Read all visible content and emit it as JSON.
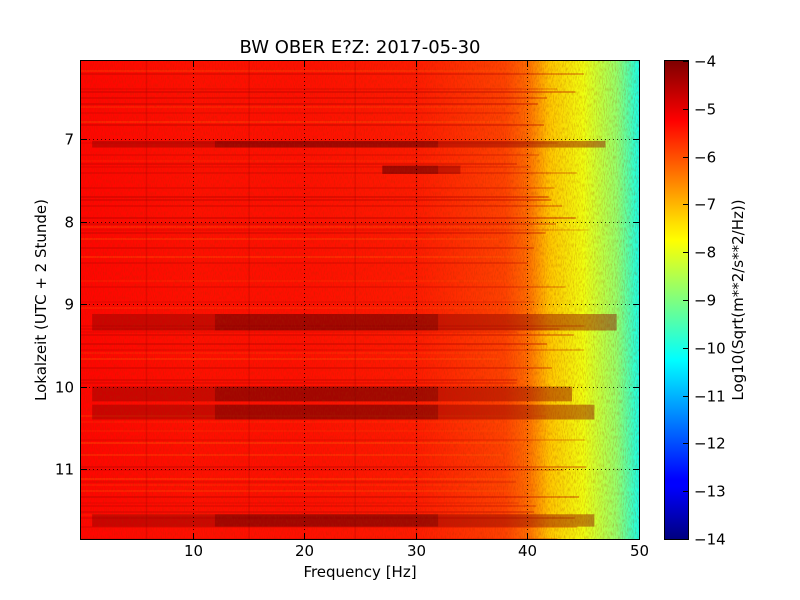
{
  "chart_data": {
    "type": "heatmap",
    "title": "BW OBER E?Z: 2017-05-30",
    "xlabel": "Frequency [Hz]",
    "ylabel": "Lokalzeit (UTC + 2 Stunde)",
    "xlim": [
      0,
      50
    ],
    "ylim": [
      11.85,
      6.05
    ],
    "xticks": [
      10,
      20,
      30,
      40,
      50
    ],
    "xtick_labels": [
      "10",
      "20",
      "30",
      "40",
      "50"
    ],
    "yticks": [
      7,
      8,
      9,
      10,
      11
    ],
    "ytick_labels": [
      "7",
      "8",
      "9",
      "10",
      "11"
    ],
    "grid": true,
    "colormap": "jet",
    "colorbar": {
      "label": "Log10(Sqrt(m**2/s**2/Hz))",
      "range": [
        -14,
        -4
      ],
      "ticks": [
        -4,
        -5,
        -6,
        -7,
        -8,
        -9,
        -10,
        -11,
        -12,
        -13,
        -14
      ],
      "tick_labels": [
        "−4",
        "−5",
        "−6",
        "−7",
        "−8",
        "−9",
        "−10",
        "−11",
        "−12",
        "−13",
        "−14"
      ]
    },
    "spectrum_profile": {
      "frequency_hz": [
        0,
        10,
        20,
        30,
        38,
        40,
        42,
        45,
        48,
        50
      ],
      "level": [
        -5.3,
        -5.4,
        -5.4,
        -5.5,
        -5.9,
        -6.3,
        -7.2,
        -7.9,
        -8.8,
        -10.0
      ]
    },
    "dark_bands": [
      {
        "time_start": 7.02,
        "time_end": 7.1,
        "freq_start": 1,
        "freq_end": 47
      },
      {
        "time_start": 7.32,
        "time_end": 7.42,
        "freq_start": 27,
        "freq_end": 34
      },
      {
        "time_start": 9.12,
        "time_end": 9.32,
        "freq_start": 1,
        "freq_end": 48
      },
      {
        "time_start": 10.0,
        "time_end": 10.18,
        "freq_start": 1,
        "freq_end": 44
      },
      {
        "time_start": 10.22,
        "time_end": 10.4,
        "freq_start": 1,
        "freq_end": 46
      },
      {
        "time_start": 11.55,
        "time_end": 11.7,
        "freq_start": 1,
        "freq_end": 46
      }
    ]
  }
}
